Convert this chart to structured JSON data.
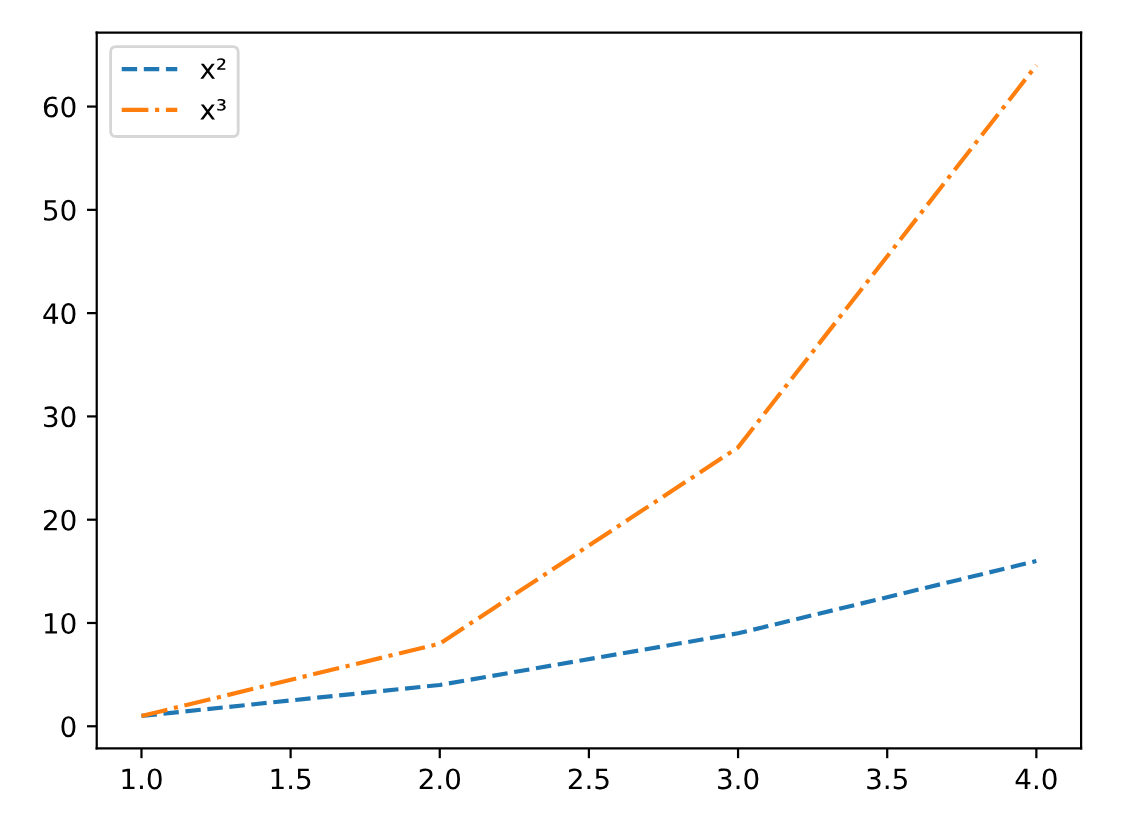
{
  "chart_data": {
    "type": "line",
    "x": [
      1,
      2,
      3,
      4
    ],
    "series": [
      {
        "name": "x²",
        "color": "#1f77b4",
        "values": [
          1,
          4,
          9,
          16
        ],
        "line_style": "dashed"
      },
      {
        "name": "x³",
        "color": "#ff7f0e",
        "values": [
          1,
          8,
          27,
          64
        ],
        "line_style": "dashdot"
      }
    ],
    "xlim": [
      0.85,
      4.15
    ],
    "ylim": [
      -2.15,
      67.15
    ],
    "xticks": [
      {
        "value": 1,
        "label": "1.0"
      },
      {
        "value": 1.5,
        "label": "1.5"
      },
      {
        "value": 2,
        "label": "2.0"
      },
      {
        "value": 2.5,
        "label": "2.5"
      },
      {
        "value": 3,
        "label": "3.0"
      },
      {
        "value": 3.5,
        "label": "3.5"
      },
      {
        "value": 4,
        "label": "4.0"
      }
    ],
    "yticks": [
      0,
      10,
      20,
      30,
      40,
      50,
      60
    ],
    "legend": "top left",
    "grid": false,
    "marker": "none"
  }
}
